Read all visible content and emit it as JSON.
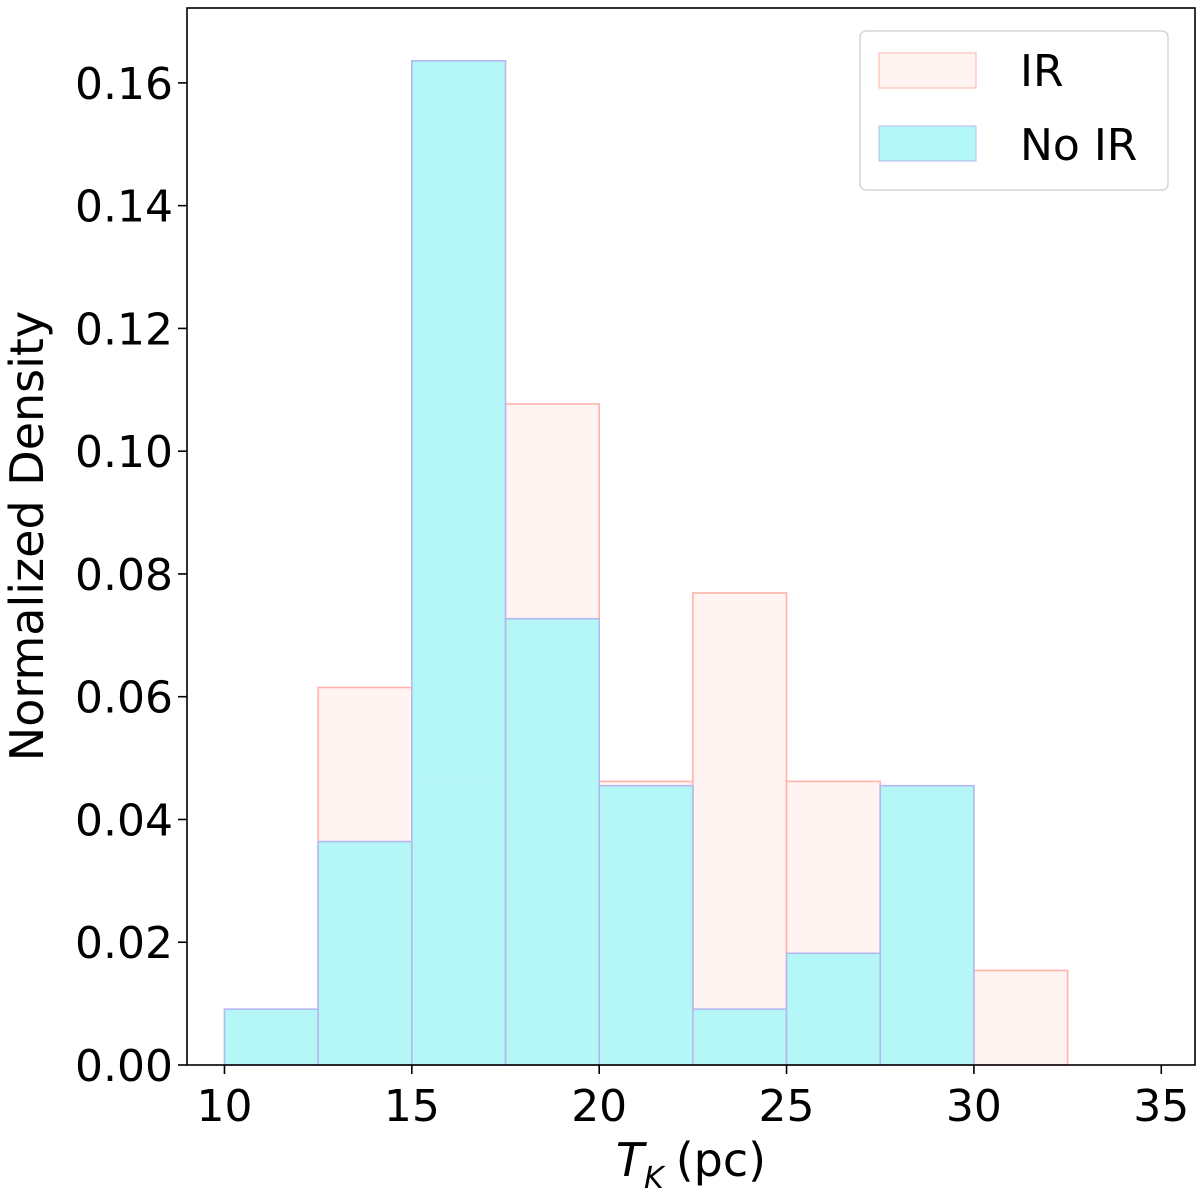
{
  "chart_data": {
    "type": "histogram",
    "xlabel_main": "T",
    "xlabel_sub": "K",
    "xlabel_unit": "(pc)",
    "ylabel": "Normalized Density",
    "xlim": [
      9.0,
      35.9
    ],
    "ylim": [
      0,
      0.1722
    ],
    "xticks": [
      10,
      15,
      20,
      25,
      30,
      35
    ],
    "yticks": [
      0.0,
      0.02,
      0.04,
      0.06,
      0.08,
      0.1,
      0.12,
      0.14,
      0.16
    ],
    "ytick_labels": [
      "0.00",
      "0.02",
      "0.04",
      "0.06",
      "0.08",
      "0.10",
      "0.12",
      "0.14",
      "0.16"
    ],
    "bin_edges": [
      10,
      12.5,
      15,
      17.5,
      20,
      22.5,
      25,
      27.5,
      30,
      32.5
    ],
    "series": [
      {
        "name": "IR",
        "fill": "#fff4f2",
        "stroke": "#ffb3ab",
        "values": [
          0,
          0.0615,
          0.0462,
          0.1077,
          0.0462,
          0.0769,
          0.0462,
          0,
          0.0154
        ]
      },
      {
        "name": "No IR",
        "fill": "#b3f7f7",
        "stroke": "#b4b8f0",
        "values": [
          0.0091,
          0.0364,
          0.1636,
          0.0727,
          0.0455,
          0.0091,
          0.0182,
          0.0455,
          0
        ]
      }
    ],
    "legend": {
      "position": "top-right",
      "entries": [
        "IR",
        "No IR"
      ]
    },
    "grid": false
  }
}
